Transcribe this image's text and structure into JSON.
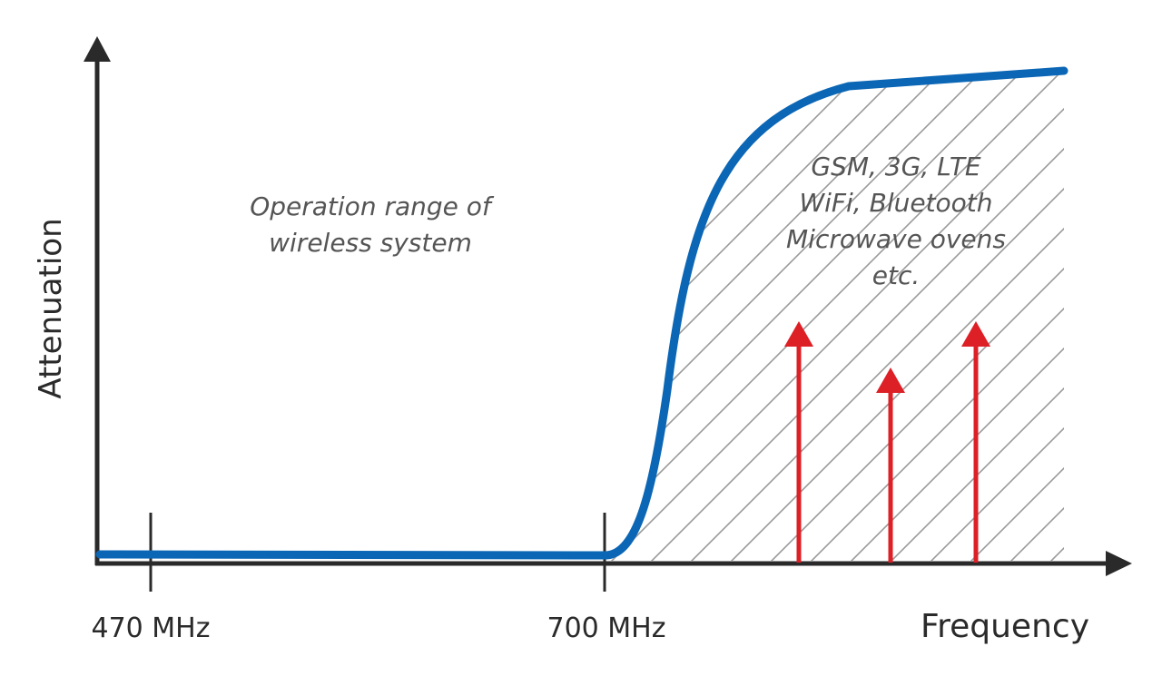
{
  "axes": {
    "y_label": "Attenuation",
    "x_label": "Frequency"
  },
  "ticks": [
    "470 MHz",
    "700 MHz"
  ],
  "annotations": {
    "operation_range": [
      "Operation range of",
      "wireless system"
    ],
    "interference_sources": [
      "GSM, 3G, LTE",
      "WiFi, Bluetooth",
      "Microwave ovens",
      "etc."
    ]
  },
  "colors": {
    "axis": "#2a2a2a",
    "curve": "#0b66b5",
    "arrows": "#dd1f26",
    "hatch": "#9a9a9a"
  }
}
